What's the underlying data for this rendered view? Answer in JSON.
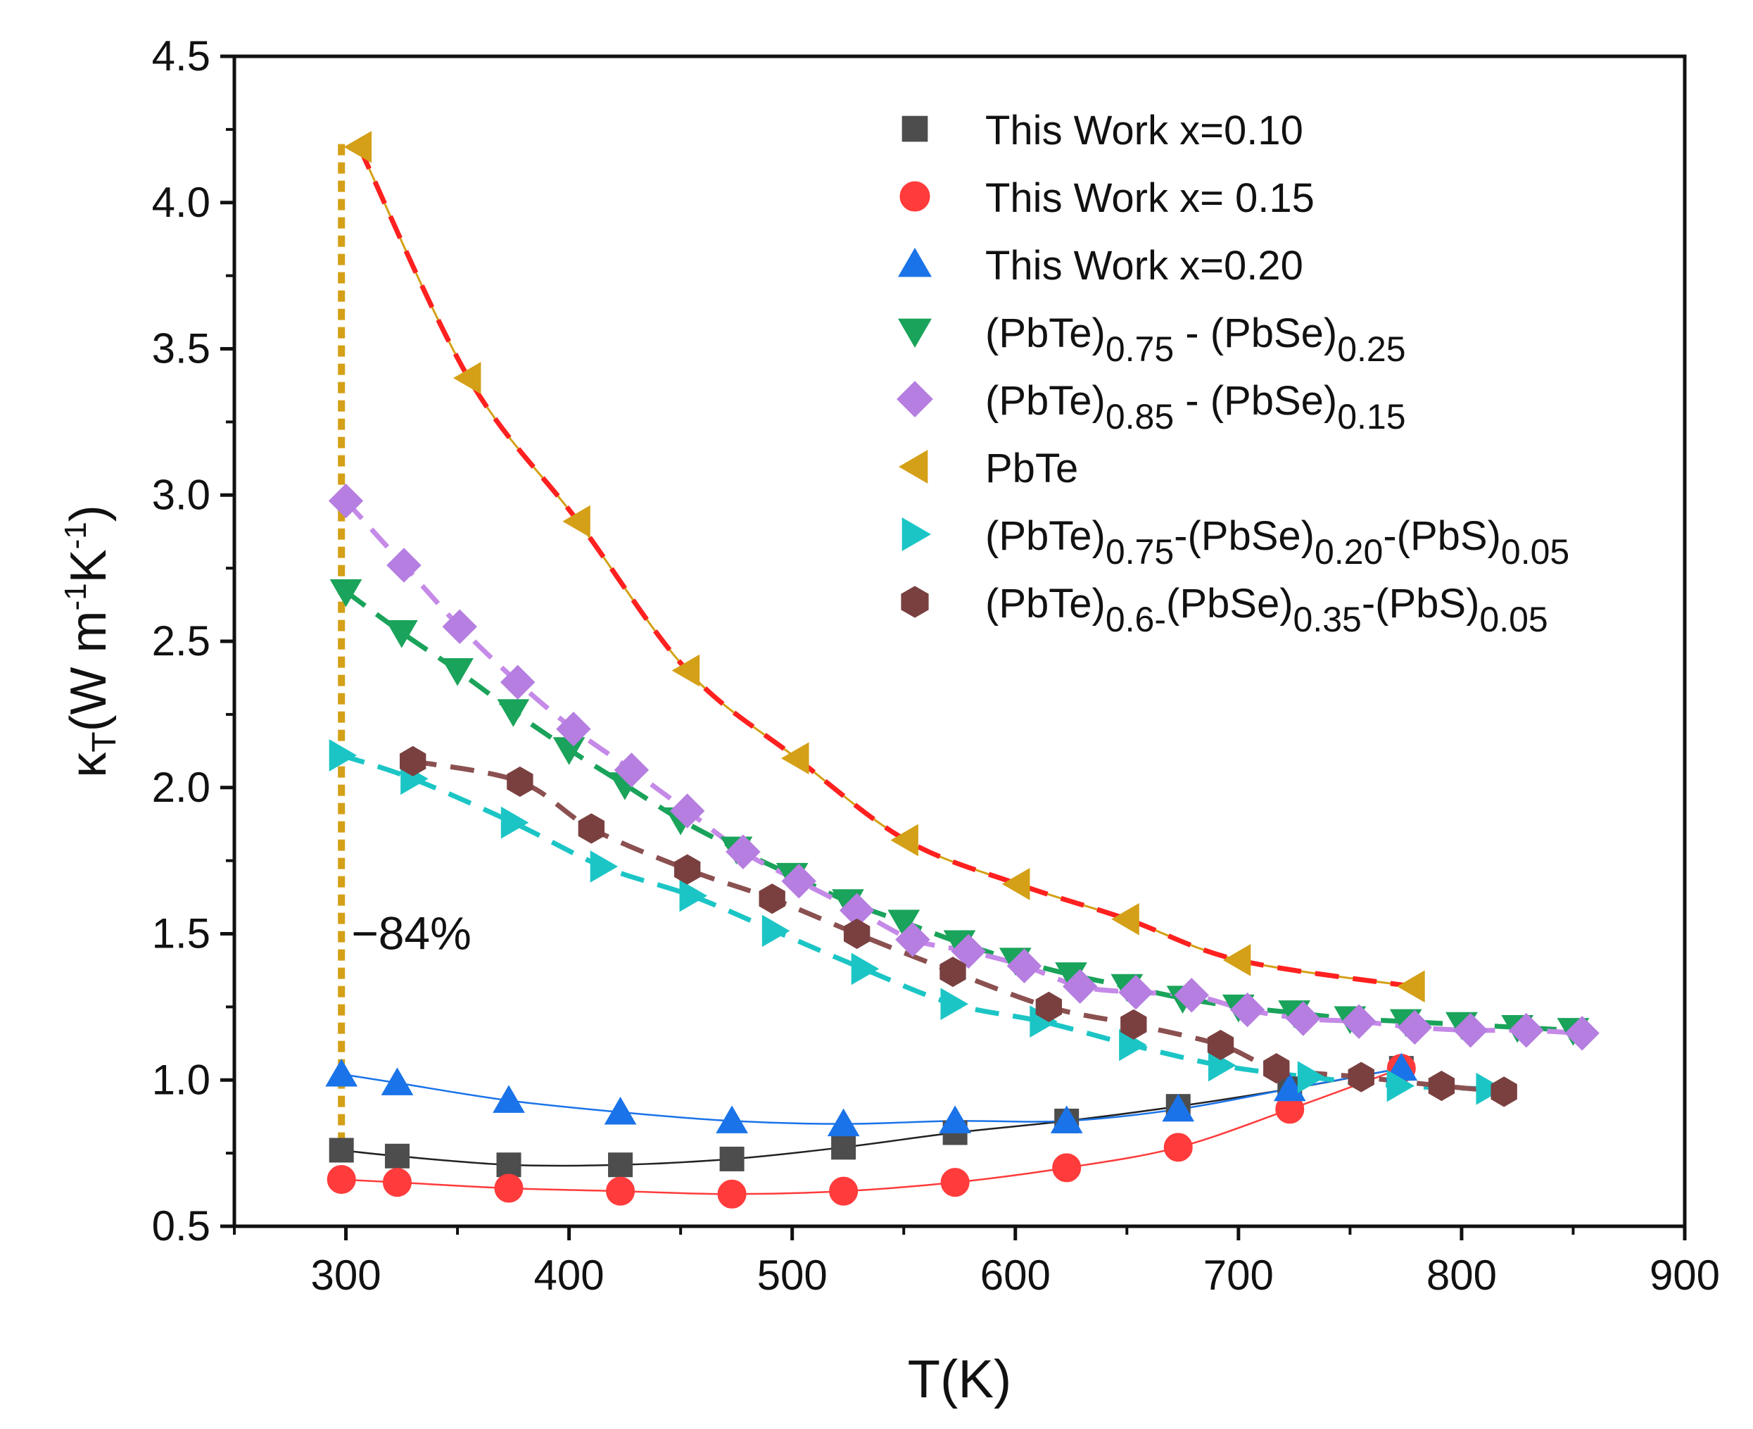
{
  "chart_data": {
    "type": "scatter",
    "xlabel": "T(K)",
    "ylabel": {
      "kappa": "κ",
      "sub": "T",
      "units_a": "(W m",
      "sup1": "-1",
      "units_b": "K",
      "sup2": "-1",
      "close": ")"
    },
    "xlim": [
      250,
      900
    ],
    "ylim": [
      0.5,
      4.5
    ],
    "xticks": [
      300,
      400,
      500,
      600,
      700,
      800,
      900
    ],
    "yticks": [
      0.5,
      1.0,
      1.5,
      2.0,
      2.5,
      3.0,
      3.5,
      4.0,
      4.5
    ],
    "xtick_labels": [
      "300",
      "400",
      "500",
      "600",
      "700",
      "800",
      "900"
    ],
    "ytick_labels": [
      "0.5",
      "1.0",
      "1.5",
      "2.0",
      "2.5",
      "3.0",
      "3.5",
      "4.0",
      "4.5"
    ],
    "annotation": {
      "text": "−84%",
      "x_from": 298,
      "y_from": 4.2,
      "y_to": 0.78,
      "color": "#D4A017"
    },
    "series": [
      {
        "name": "This Work x=0.10",
        "legend": [
          {
            "t": "This Work x=0.10"
          }
        ],
        "marker": "square",
        "color": "#4d4d4d",
        "line": "solid",
        "line_color": "#222222",
        "x": [
          298,
          323,
          373,
          423,
          473,
          523,
          573,
          623,
          673,
          723,
          773
        ],
        "y": [
          0.76,
          0.74,
          0.71,
          0.71,
          0.73,
          0.77,
          0.82,
          0.86,
          0.91,
          0.97,
          1.04
        ]
      },
      {
        "name": "This Work  x= 0.15",
        "legend": [
          {
            "t": "This Work  x= 0.15"
          }
        ],
        "marker": "circle",
        "color": "#ff3b3b",
        "line": "solid",
        "line_color": "#ff3b3b",
        "x": [
          298,
          323,
          373,
          423,
          473,
          523,
          573,
          623,
          673,
          723,
          773
        ],
        "y": [
          0.66,
          0.65,
          0.63,
          0.62,
          0.61,
          0.62,
          0.65,
          0.7,
          0.77,
          0.9,
          1.04
        ]
      },
      {
        "name": "This Work x=0.20",
        "legend": [
          {
            "t": "This Work x=0.20"
          }
        ],
        "marker": "triangle-up",
        "color": "#1a73e8",
        "line": "solid",
        "line_color": "#1a73e8",
        "x": [
          298,
          323,
          373,
          423,
          473,
          523,
          573,
          623,
          673,
          723,
          773
        ],
        "y": [
          1.02,
          0.99,
          0.93,
          0.89,
          0.86,
          0.85,
          0.86,
          0.86,
          0.9,
          0.97,
          1.04
        ]
      },
      {
        "name": "(PbTe)0.75 - (PbSe)0.25",
        "legend": [
          {
            "t": "(PbTe)"
          },
          {
            "t": "0.75",
            "sub": true
          },
          {
            "t": " - (PbSe)"
          },
          {
            "t": "0.25",
            "sub": true
          }
        ],
        "marker": "triangle-down",
        "color": "#1aa35a",
        "line": "dashed",
        "line_color": "#1aa35a",
        "x": [
          300,
          325,
          350,
          375,
          400,
          425,
          450,
          475,
          500,
          525,
          550,
          575,
          600,
          625,
          650,
          675,
          700,
          725,
          750,
          775,
          800,
          825,
          850
        ],
        "y": [
          2.67,
          2.53,
          2.4,
          2.26,
          2.13,
          2.01,
          1.89,
          1.79,
          1.7,
          1.61,
          1.54,
          1.47,
          1.41,
          1.36,
          1.32,
          1.28,
          1.25,
          1.23,
          1.21,
          1.2,
          1.19,
          1.18,
          1.17
        ]
      },
      {
        "name": "(PbTe)0.85 - (PbSe)0.15",
        "legend": [
          {
            "t": "(PbTe)"
          },
          {
            "t": "0.85",
            "sub": true
          },
          {
            "t": " - (PbSe)"
          },
          {
            "t": "0.15",
            "sub": true
          }
        ],
        "marker": "diamond",
        "color": "#b57ee0",
        "line": "dashed",
        "line_color": "#c58ae8",
        "x": [
          300,
          326,
          351,
          377,
          402,
          428,
          453,
          478,
          503,
          529,
          554,
          579,
          604,
          629,
          654,
          679,
          704,
          729,
          754,
          779,
          804,
          829,
          854
        ],
        "y": [
          2.98,
          2.76,
          2.55,
          2.36,
          2.2,
          2.06,
          1.92,
          1.78,
          1.68,
          1.58,
          1.48,
          1.44,
          1.39,
          1.32,
          1.3,
          1.29,
          1.24,
          1.21,
          1.2,
          1.18,
          1.17,
          1.17,
          1.16
        ]
      },
      {
        "name": "PbTe",
        "legend": [
          {
            "t": "PbTe"
          }
        ],
        "marker": "triangle-left",
        "color": "#d4a017",
        "line": "dashed",
        "line_color": "#ff2020",
        "x": [
          306,
          355,
          404,
          453,
          502,
          551,
          601,
          650,
          700,
          778
        ],
        "y": [
          4.19,
          3.4,
          2.91,
          2.4,
          2.1,
          1.82,
          1.67,
          1.55,
          1.41,
          1.32
        ]
      },
      {
        "name": "(PbTe)0.75-(PbSe)0.20-(PbS)0.05",
        "legend": [
          {
            "t": "(PbTe)"
          },
          {
            "t": "0.75",
            "sub": true
          },
          {
            "t": "-(PbSe)"
          },
          {
            "t": "0.20",
            "sub": true
          },
          {
            "t": "-(PbS)"
          },
          {
            "t": "0.05",
            "sub": true
          }
        ],
        "marker": "triangle-right",
        "color": "#1cc5c5",
        "line": "dashed",
        "line_color": "#1cc5c5",
        "x": [
          298,
          330,
          375,
          415,
          455,
          492,
          532,
          572,
          612,
          652,
          692,
          732,
          772,
          812
        ],
        "y": [
          2.11,
          2.03,
          1.88,
          1.73,
          1.63,
          1.51,
          1.38,
          1.26,
          1.2,
          1.12,
          1.05,
          1.01,
          0.98,
          0.97
        ]
      },
      {
        "name": "(PbTe)0.6-(PbSe)0.35-(PbS)0.05",
        "legend": [
          {
            "t": "(PbTe)"
          },
          {
            "t": "0.6-",
            "sub": true
          },
          {
            "t": "(PbSe)"
          },
          {
            "t": "0.35",
            "sub": true
          },
          {
            "t": "-(PbS)"
          },
          {
            "t": "0.05",
            "sub": true
          }
        ],
        "marker": "hexagon",
        "color": "#7a4040",
        "line": "dashed",
        "line_color": "#8b5050",
        "x": [
          330,
          378,
          410,
          453,
          491,
          529,
          572,
          615,
          653,
          692,
          717,
          755,
          791,
          819
        ],
        "y": [
          2.09,
          2.02,
          1.86,
          1.72,
          1.62,
          1.5,
          1.37,
          1.25,
          1.19,
          1.12,
          1.04,
          1.01,
          0.98,
          0.96
        ]
      }
    ]
  }
}
